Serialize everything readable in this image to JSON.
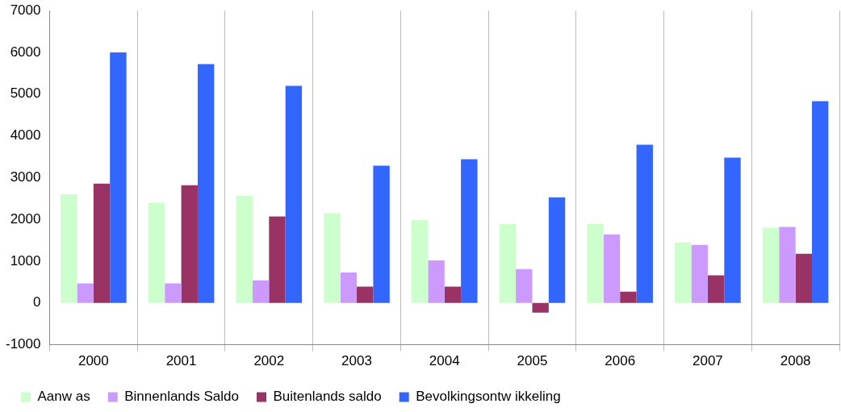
{
  "chart_data": {
    "type": "bar",
    "categories": [
      "2000",
      "2001",
      "2002",
      "2003",
      "2004",
      "2005",
      "2006",
      "2007",
      "2008"
    ],
    "series": [
      {
        "name": "Aanw as",
        "color": "#ccffcc",
        "values": [
          2600,
          2400,
          2570,
          2150,
          1990,
          1890,
          1890,
          1450,
          1800
        ]
      },
      {
        "name": "Binnenlands Saldo",
        "color": "#cc99ff",
        "values": [
          470,
          470,
          540,
          730,
          1020,
          810,
          1640,
          1390,
          1820
        ]
      },
      {
        "name": "Buitenlands saldo",
        "color": "#993366",
        "values": [
          2860,
          2820,
          2070,
          390,
          390,
          -230,
          270,
          660,
          1180
        ]
      },
      {
        "name": "Bevolkingsontw ikkeling",
        "color": "#3366ff",
        "values": [
          6000,
          5720,
          5200,
          3290,
          3440,
          2530,
          3790,
          3480,
          4830
        ]
      }
    ],
    "ylim": [
      -1000,
      7000
    ],
    "yticks": [
      -1000,
      0,
      1000,
      2000,
      3000,
      4000,
      5000,
      6000,
      7000
    ],
    "grid": "x",
    "legend": "bottom left"
  }
}
